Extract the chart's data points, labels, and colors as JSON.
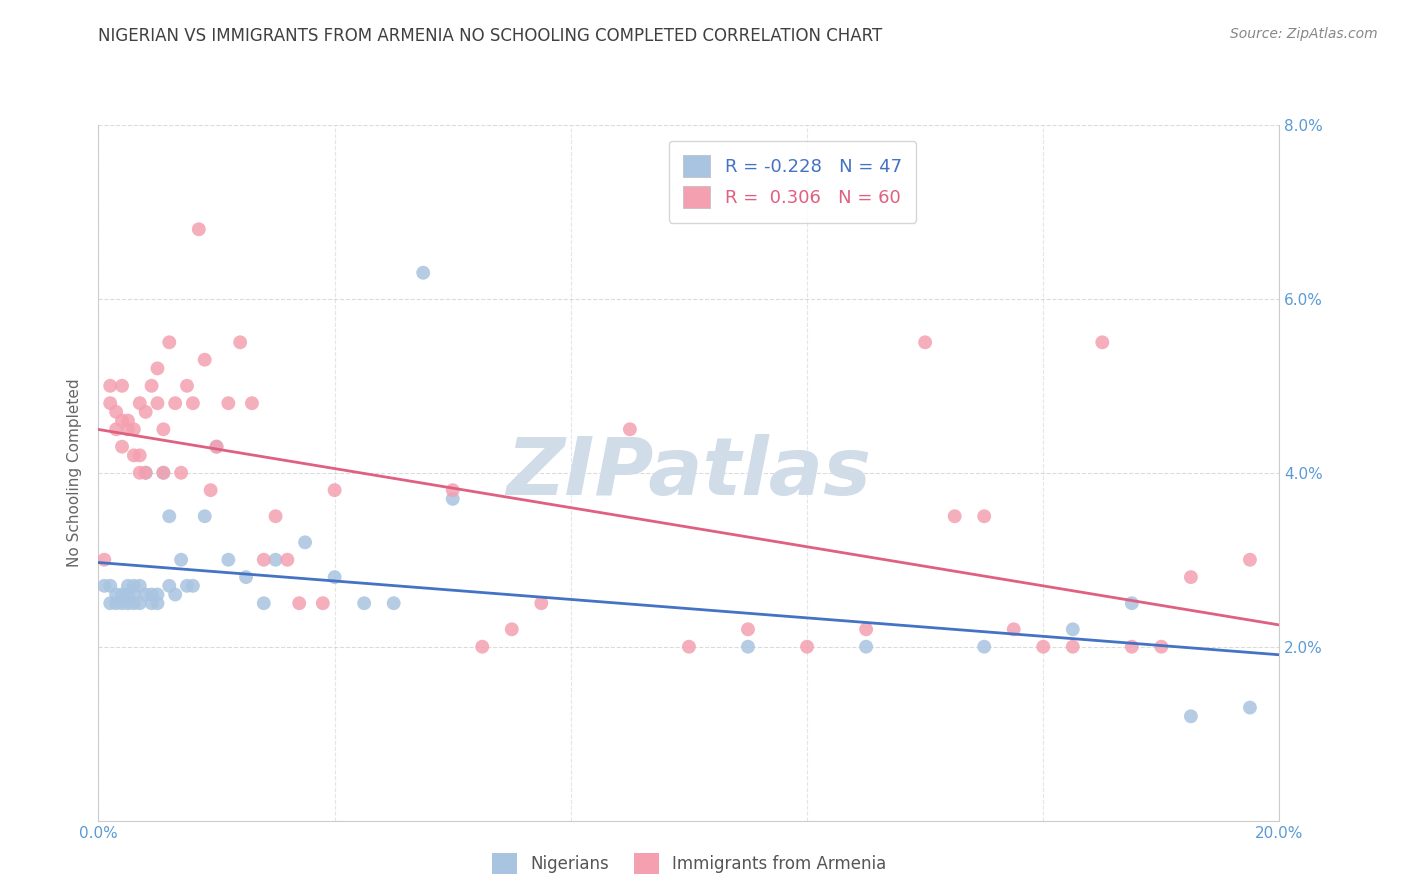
{
  "title": "NIGERIAN VS IMMIGRANTS FROM ARMENIA NO SCHOOLING COMPLETED CORRELATION CHART",
  "source": "Source: ZipAtlas.com",
  "ylabel": "No Schooling Completed",
  "xlim": [
    0.0,
    0.2
  ],
  "ylim": [
    0.0,
    0.08
  ],
  "xticks": [
    0.0,
    0.2
  ],
  "xtick_labels": [
    "0.0%",
    "20.0%"
  ],
  "yticks": [
    0.0,
    0.02,
    0.04,
    0.06,
    0.08
  ],
  "ytick_labels": [
    "",
    "2.0%",
    "4.0%",
    "6.0%",
    "8.0%"
  ],
  "blue_label": "Nigerians",
  "pink_label": "Immigrants from Armenia",
  "blue_R": -0.228,
  "blue_N": 47,
  "pink_R": 0.306,
  "pink_N": 60,
  "blue_color": "#a8c4e0",
  "pink_color": "#f4a0b0",
  "blue_line_color": "#4472c4",
  "pink_line_color": "#e06080",
  "watermark": "ZIPatlas",
  "watermark_color": "#d0dce8",
  "background_color": "#ffffff",
  "grid_color": "#cccccc",
  "tick_label_color": "#5b9bd5",
  "title_color": "#404040",
  "blue_x": [
    0.001,
    0.002,
    0.002,
    0.003,
    0.003,
    0.004,
    0.004,
    0.005,
    0.005,
    0.005,
    0.006,
    0.006,
    0.006,
    0.007,
    0.007,
    0.008,
    0.008,
    0.009,
    0.009,
    0.01,
    0.01,
    0.011,
    0.012,
    0.012,
    0.013,
    0.014,
    0.015,
    0.016,
    0.018,
    0.02,
    0.022,
    0.025,
    0.028,
    0.03,
    0.035,
    0.04,
    0.045,
    0.05,
    0.055,
    0.06,
    0.11,
    0.13,
    0.15,
    0.165,
    0.175,
    0.185,
    0.195
  ],
  "blue_y": [
    0.027,
    0.025,
    0.027,
    0.025,
    0.026,
    0.026,
    0.025,
    0.027,
    0.025,
    0.026,
    0.027,
    0.025,
    0.026,
    0.025,
    0.027,
    0.026,
    0.04,
    0.025,
    0.026,
    0.026,
    0.025,
    0.04,
    0.027,
    0.035,
    0.026,
    0.03,
    0.027,
    0.027,
    0.035,
    0.043,
    0.03,
    0.028,
    0.025,
    0.03,
    0.032,
    0.028,
    0.025,
    0.025,
    0.063,
    0.037,
    0.02,
    0.02,
    0.02,
    0.022,
    0.025,
    0.012,
    0.013
  ],
  "pink_x": [
    0.001,
    0.002,
    0.002,
    0.003,
    0.003,
    0.004,
    0.004,
    0.004,
    0.005,
    0.005,
    0.006,
    0.006,
    0.007,
    0.007,
    0.007,
    0.008,
    0.008,
    0.009,
    0.01,
    0.01,
    0.011,
    0.011,
    0.012,
    0.013,
    0.014,
    0.015,
    0.016,
    0.017,
    0.018,
    0.019,
    0.02,
    0.022,
    0.024,
    0.026,
    0.028,
    0.03,
    0.032,
    0.034,
    0.038,
    0.04,
    0.06,
    0.065,
    0.07,
    0.075,
    0.09,
    0.1,
    0.11,
    0.12,
    0.13,
    0.14,
    0.145,
    0.15,
    0.155,
    0.16,
    0.165,
    0.17,
    0.175,
    0.18,
    0.185,
    0.195
  ],
  "pink_y": [
    0.03,
    0.048,
    0.05,
    0.045,
    0.047,
    0.046,
    0.043,
    0.05,
    0.046,
    0.045,
    0.045,
    0.042,
    0.048,
    0.04,
    0.042,
    0.047,
    0.04,
    0.05,
    0.052,
    0.048,
    0.04,
    0.045,
    0.055,
    0.048,
    0.04,
    0.05,
    0.048,
    0.068,
    0.053,
    0.038,
    0.043,
    0.048,
    0.055,
    0.048,
    0.03,
    0.035,
    0.03,
    0.025,
    0.025,
    0.038,
    0.038,
    0.02,
    0.022,
    0.025,
    0.045,
    0.02,
    0.022,
    0.02,
    0.022,
    0.055,
    0.035,
    0.035,
    0.022,
    0.02,
    0.02,
    0.055,
    0.02,
    0.02,
    0.028,
    0.03
  ],
  "grid_xticks": [
    0.0,
    0.04,
    0.08,
    0.12,
    0.16,
    0.2
  ]
}
